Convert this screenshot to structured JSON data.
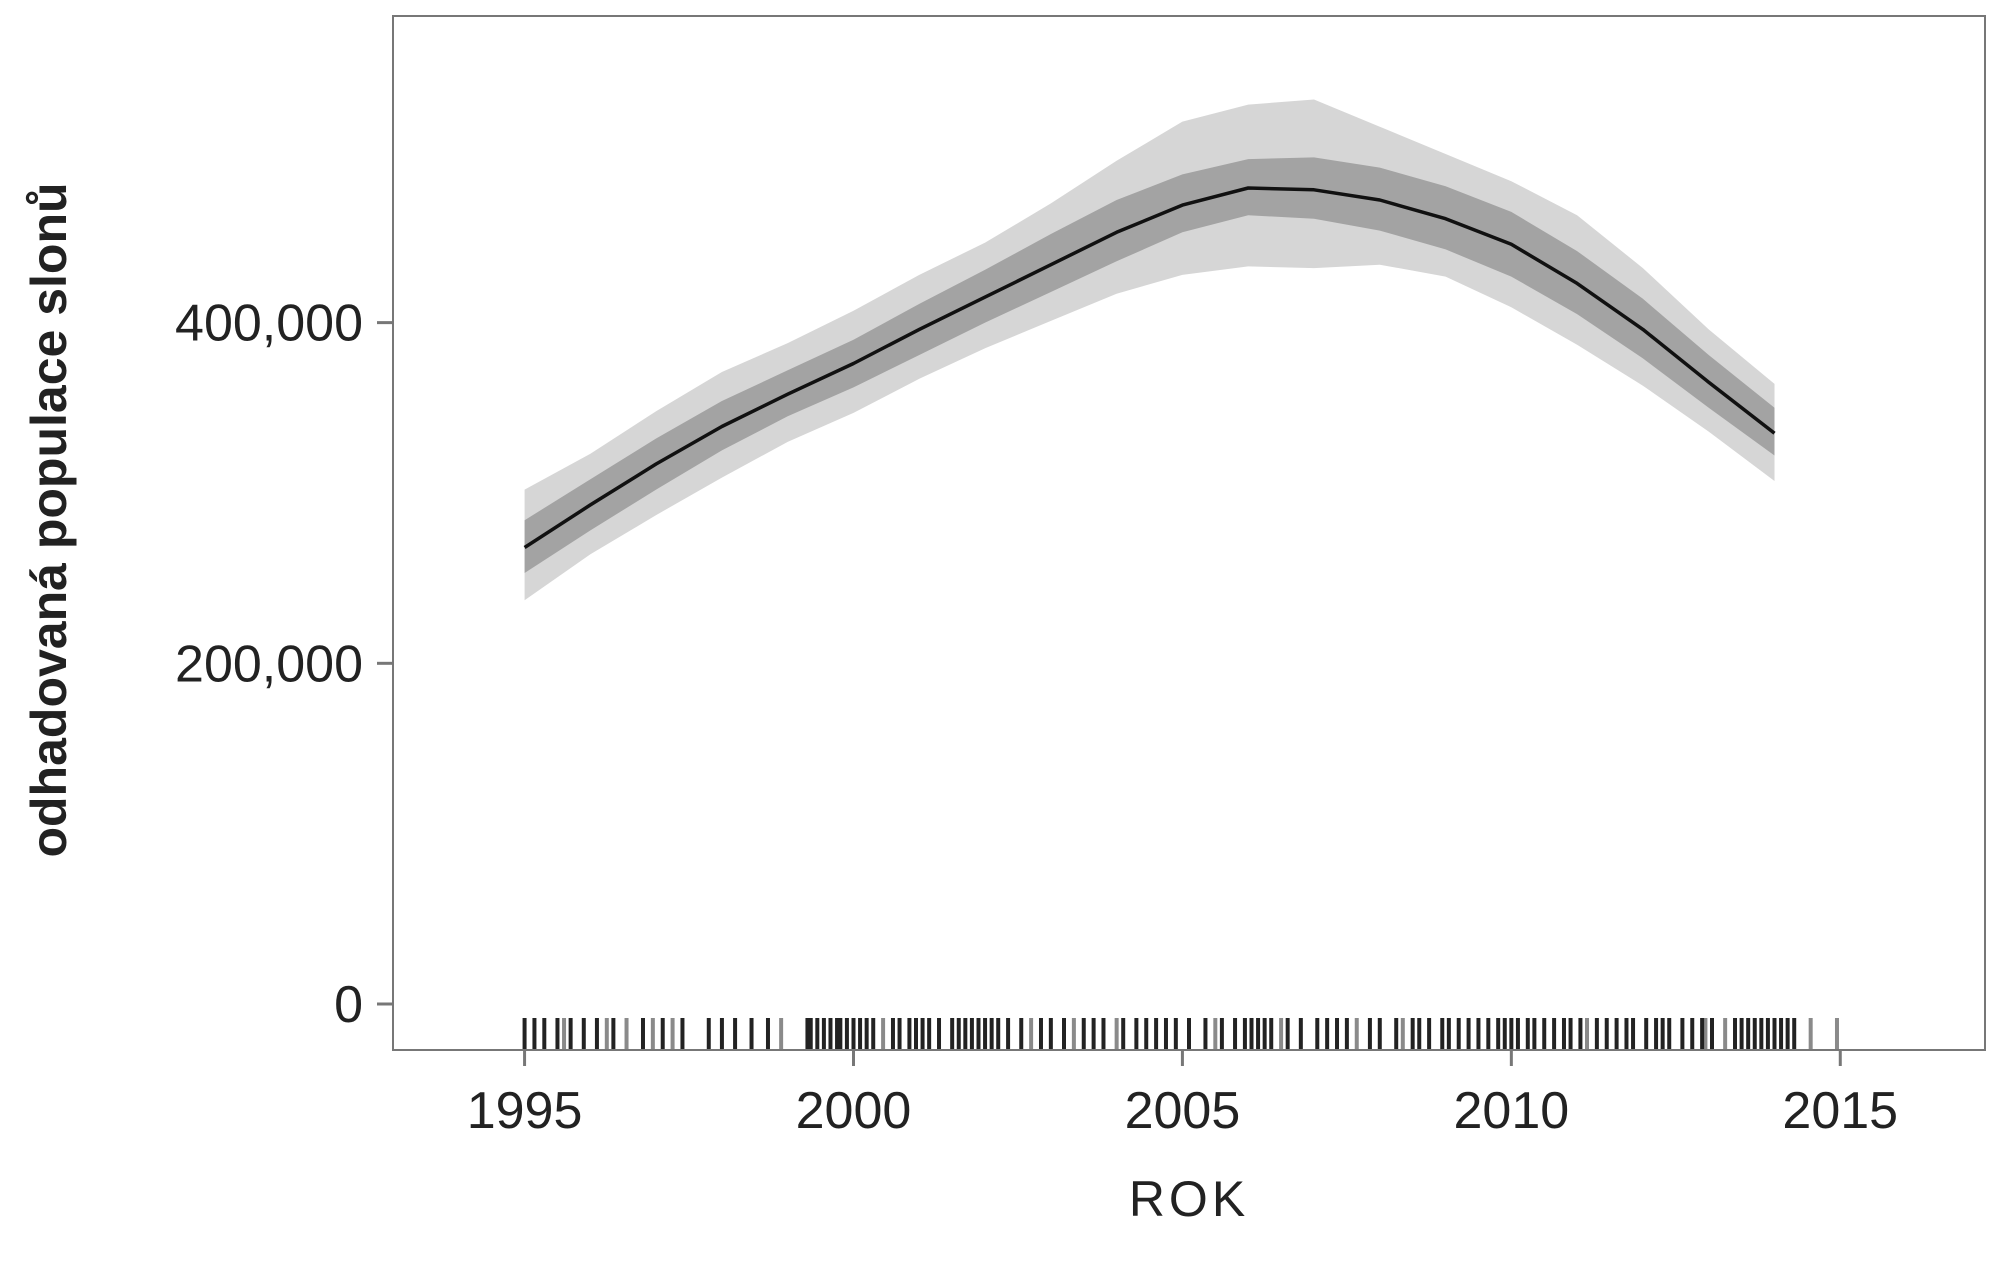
{
  "chart_data": {
    "type": "line",
    "title": "",
    "xlabel": "ROK",
    "ylabel": "odhadovaná populace slonů",
    "xlim": [
      1993,
      2017.2
    ],
    "ylim": [
      -27000,
      580000
    ],
    "x_ticks": [
      1995,
      2000,
      2005,
      2010,
      2015
    ],
    "x_tick_labels": [
      "1995",
      "2000",
      "2005",
      "2010",
      "2015"
    ],
    "y_ticks": [
      0,
      200000,
      400000
    ],
    "y_tick_labels": [
      "0",
      "200,000",
      "400,000"
    ],
    "grid": false,
    "legend": "none",
    "colors": {
      "line": "#111111",
      "inner_band": "#a3a3a3",
      "outer_band": "#d6d6d6",
      "rug": "#222222",
      "rug_light": "#8a8a8a",
      "frame": "#777777",
      "text": "#222222"
    },
    "series": [
      {
        "x": [
          1995,
          1996,
          1997,
          1998,
          1999,
          2000,
          2001,
          2002,
          2003,
          2004,
          2005,
          2006,
          2007,
          2008,
          2009,
          2010,
          2011,
          2012,
          2013,
          2014
        ],
        "values": [
          268000,
          293000,
          317000,
          339000,
          358000,
          376000,
          396000,
          415000,
          434000,
          453000,
          469000,
          479000,
          478000,
          472000,
          461000,
          446000,
          423000,
          396000,
          365000,
          335000
        ],
        "inner_lower": [
          253000,
          278000,
          302000,
          325000,
          345000,
          362000,
          381000,
          400000,
          418000,
          436000,
          453000,
          463000,
          461000,
          454000,
          443000,
          427000,
          405000,
          379000,
          350000,
          322000
        ],
        "inner_upper": [
          284000,
          308000,
          332000,
          354000,
          372000,
          390000,
          411000,
          431000,
          452000,
          472000,
          487000,
          496000,
          497000,
          491000,
          480000,
          465000,
          442000,
          414000,
          381000,
          350000
        ],
        "outer_lower": [
          237000,
          264000,
          287000,
          309000,
          330000,
          347000,
          367000,
          385000,
          401000,
          417000,
          428000,
          433000,
          432000,
          434000,
          427000,
          409000,
          387000,
          363000,
          336000,
          307000
        ],
        "outer_upper": [
          302000,
          323000,
          348000,
          371000,
          388000,
          407000,
          428000,
          447000,
          470000,
          495000,
          518000,
          528000,
          531000,
          515000,
          499000,
          483000,
          463000,
          432000,
          396000,
          364000
        ]
      }
    ],
    "rug": {
      "dark": [
        1995.0,
        1995.15,
        1995.3,
        1995.5,
        1995.7,
        1995.9,
        1996.1,
        1996.35,
        1996.8,
        1997.1,
        1997.4,
        1997.8,
        1998.0,
        1998.2,
        1998.45,
        1998.7,
        1999.3,
        1999.35,
        1999.45,
        1999.55,
        1999.65,
        1999.75,
        1999.8,
        1999.9,
        2000.0,
        2000.1,
        2000.2,
        2000.3,
        2000.6,
        2000.7,
        2000.85,
        2000.95,
        2001.05,
        2001.15,
        2001.3,
        2001.5,
        2001.6,
        2001.7,
        2001.8,
        2001.9,
        2002.0,
        2002.1,
        2002.2,
        2002.35,
        2002.55,
        2002.85,
        2003.0,
        2003.2,
        2003.5,
        2003.65,
        2003.8,
        2004.1,
        2004.3,
        2004.45,
        2004.6,
        2004.75,
        2004.9,
        2005.1,
        2005.35,
        2005.6,
        2005.8,
        2005.95,
        2006.05,
        2006.15,
        2006.25,
        2006.35,
        2006.6,
        2006.8,
        2007.05,
        2007.2,
        2007.35,
        2007.5,
        2007.85,
        2008.0,
        2008.25,
        2008.5,
        2008.6,
        2008.75,
        2008.95,
        2009.05,
        2009.2,
        2009.35,
        2009.5,
        2009.65,
        2009.8,
        2009.9,
        2010.0,
        2010.1,
        2010.25,
        2010.35,
        2010.5,
        2010.65,
        2010.8,
        2010.9,
        2011.05,
        2011.3,
        2011.45,
        2011.6,
        2011.75,
        2011.85,
        2012.05,
        2012.2,
        2012.3,
        2012.4,
        2012.6,
        2012.75,
        2012.9,
        2013.05,
        2013.4,
        2013.5,
        2013.6,
        2013.7,
        2013.8,
        2013.9,
        2014.0,
        2014.1,
        2014.2,
        2014.3
      ],
      "light": [
        1995.6,
        1996.25,
        1996.55,
        1996.95,
        1997.25,
        1998.9,
        2000.45,
        2002.7,
        2003.35,
        2004.0,
        2005.5,
        2006.5,
        2007.65,
        2008.35,
        2011.15,
        2012.95,
        2013.25,
        2014.55,
        2014.95
      ]
    }
  }
}
